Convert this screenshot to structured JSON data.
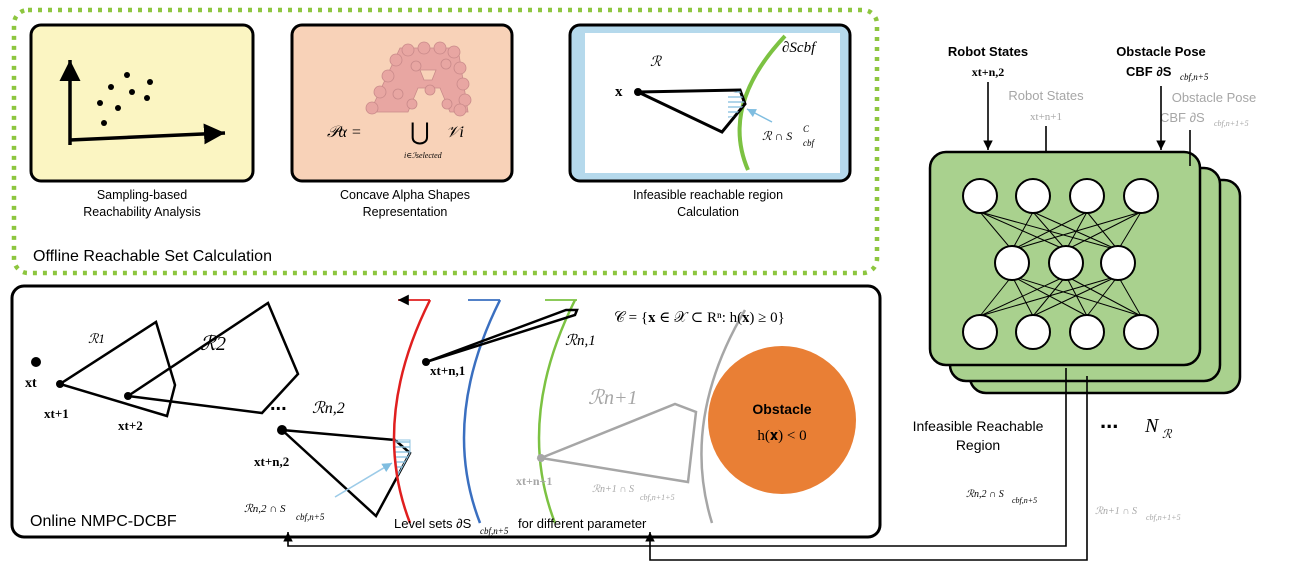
{
  "offline": {
    "title": "Offline Reachable Set Calculation",
    "panel1": {
      "caption_line1": "Sampling-based",
      "caption_line2": "Reachability Analysis"
    },
    "panel2": {
      "caption_line1": "Concave Alpha Shapes",
      "caption_line2": "Representation",
      "formula_left": "𝒫α =",
      "formula_union": "⋃",
      "formula_sub": "i∈ℐselected",
      "formula_right": "𝒱i"
    },
    "panel3": {
      "caption_line1": "Infeasible reachable region",
      "caption_line2": "Calculation",
      "label_R": "ℛ",
      "label_x": "x",
      "label_dS": "∂Scbf",
      "label_int": "ℛ ∩ S",
      "label_int_sup": "C",
      "label_int_sub": "cbf"
    }
  },
  "online": {
    "title": "Online NMPC-DCBF",
    "xt": "xt",
    "xt1": "xt+1",
    "xt2": "xt+2",
    "R1": "ℛ1",
    "R2": "ℛ2",
    "dots": "...",
    "Rn2": "ℛn,2",
    "xtn2": "xt+n,2",
    "xtn1": "xt+n,1",
    "Rn1": "ℛn,1",
    "Rnp1": "ℛn+1",
    "xtnp1": "xt+n+1",
    "int1": "ℛn,2 ∩ S",
    "int1_sub": "cbf,n+5",
    "int2": "ℛn+1 ∩ S",
    "int2_sub": "cbf,n+1+5",
    "levelsets": "Level sets ∂S",
    "levelsets_sub": "cbf,n+5",
    "levelsets_tail": "for different parameter",
    "safeset": "𝒞 = {𝐱 ∈ 𝒳 ⊂ Rⁿ: h(𝐱) ≥ 0}",
    "obstacle_label": "Obstacle",
    "obstacle_cond": "h(𝐱) < 0"
  },
  "network": {
    "robot_states": "Robot States",
    "robot_states_var": "xt+n,2",
    "obstacle_pose": "Obstacle Pose",
    "cbf_label": "CBF ∂S",
    "cbf_sub": "cbf,n+5",
    "robot_states_gray": "Robot States",
    "robot_states_gray_var": "xt+n+1",
    "obstacle_pose_gray": "Obstacle Pose",
    "cbf_gray": "CBF ∂S",
    "cbf_gray_sub": "cbf,n+1+5",
    "output_line1": "Infeasible Reachable",
    "output_line2": "Region",
    "dots": "...",
    "NR": "N",
    "NR_sub": "ℛ",
    "out_int": "ℛn,2 ∩ S",
    "out_int_sub": "cbf,n+5",
    "out_int_gray": "ℛn+1 ∩ S",
    "out_int_gray_sub": "cbf,n+1+5"
  },
  "colors": {
    "green_dotted": "#8dc63f",
    "panel1_fill": "#fbf5c2",
    "panel2_fill": "#f8d2b8",
    "panel3_fill": "#b5d9ec",
    "nn_fill": "#a9d18e",
    "obstacle": "#e97f35",
    "red": "#e01f1f",
    "blue": "#3a6fc0",
    "green": "#7cc242",
    "gray": "#a6a6a6",
    "hatch": "#8fc3e0"
  }
}
